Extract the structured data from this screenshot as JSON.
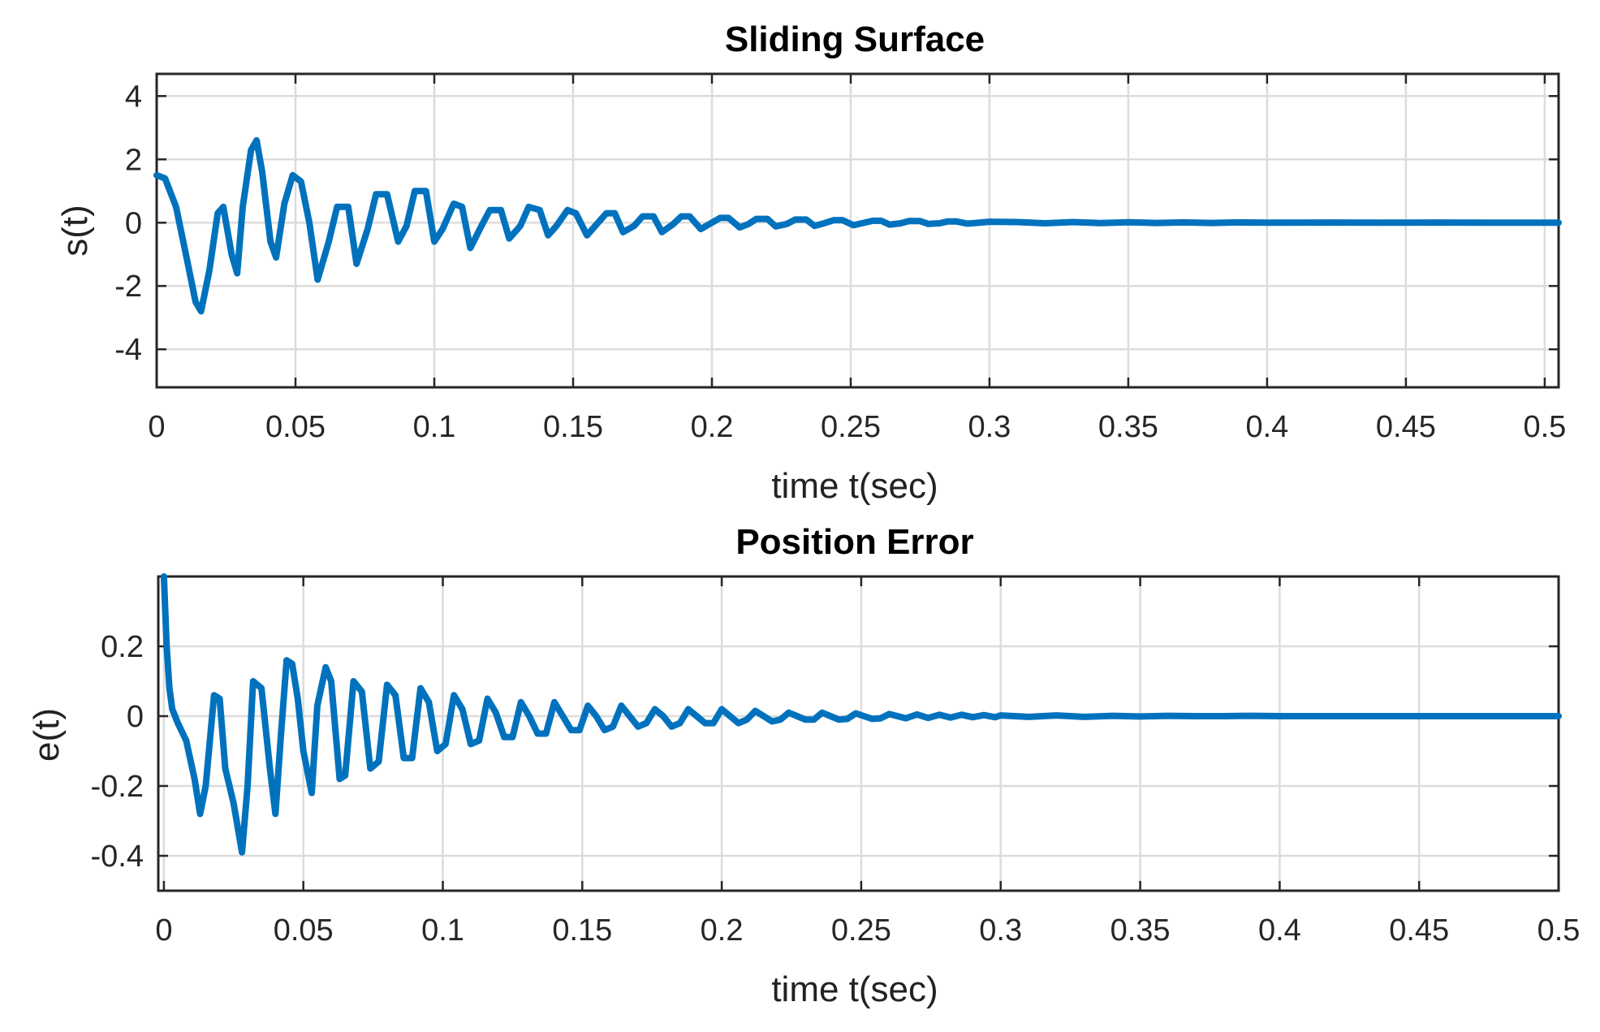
{
  "chart_data": [
    {
      "type": "line",
      "title": "Sliding Surface",
      "xlabel": "time t(sec)",
      "ylabel": "s(t)",
      "xlim": [
        0,
        0.505
      ],
      "ylim": [
        -5.2,
        4.7
      ],
      "xticks": [
        0,
        0.05,
        0.1,
        0.15,
        0.2,
        0.25,
        0.3,
        0.35,
        0.4,
        0.45,
        0.5
      ],
      "xtick_labels": [
        "0",
        "0.05",
        "0.1",
        "0.15",
        "0.2",
        "0.25",
        "0.3",
        "0.35",
        "0.4",
        "0.45",
        "0.5"
      ],
      "yticks": [
        -4,
        -2,
        0,
        2,
        4
      ],
      "ytick_labels": [
        "-4",
        "-2",
        "0",
        "2",
        "4"
      ],
      "grid": true,
      "series": [
        {
          "name": "s(t)",
          "color": "#0072BD",
          "x": [
            0,
            0.003,
            0.007,
            0.011,
            0.014,
            0.016,
            0.019,
            0.022,
            0.024,
            0.027,
            0.029,
            0.031,
            0.034,
            0.036,
            0.038,
            0.041,
            0.043,
            0.046,
            0.049,
            0.052,
            0.055,
            0.058,
            0.062,
            0.065,
            0.069,
            0.072,
            0.076,
            0.079,
            0.083,
            0.087,
            0.09,
            0.093,
            0.097,
            0.1,
            0.103,
            0.107,
            0.11,
            0.113,
            0.117,
            0.12,
            0.124,
            0.127,
            0.131,
            0.134,
            0.138,
            0.141,
            0.144,
            0.148,
            0.151,
            0.155,
            0.158,
            0.162,
            0.165,
            0.168,
            0.172,
            0.175,
            0.179,
            0.182,
            0.186,
            0.189,
            0.192,
            0.196,
            0.199,
            0.203,
            0.206,
            0.21,
            0.213,
            0.216,
            0.22,
            0.223,
            0.227,
            0.23,
            0.234,
            0.237,
            0.24,
            0.244,
            0.247,
            0.251,
            0.254,
            0.258,
            0.261,
            0.264,
            0.268,
            0.271,
            0.275,
            0.278,
            0.282,
            0.285,
            0.288,
            0.292,
            0.295,
            0.3,
            0.31,
            0.32,
            0.33,
            0.34,
            0.35,
            0.36,
            0.37,
            0.38,
            0.39,
            0.4,
            0.42,
            0.44,
            0.46,
            0.48,
            0.505
          ],
          "y": [
            1.5,
            1.4,
            0.5,
            -1.2,
            -2.5,
            -2.8,
            -1.5,
            0.3,
            0.5,
            -1.0,
            -1.6,
            0.5,
            2.3,
            2.6,
            1.6,
            -0.6,
            -1.1,
            0.6,
            1.5,
            1.3,
            0.0,
            -1.8,
            -0.6,
            0.5,
            0.5,
            -1.3,
            -0.2,
            0.9,
            0.9,
            -0.6,
            -0.1,
            1.0,
            1.0,
            -0.6,
            -0.2,
            0.6,
            0.5,
            -0.8,
            -0.1,
            0.4,
            0.4,
            -0.5,
            -0.1,
            0.5,
            0.4,
            -0.4,
            -0.1,
            0.4,
            0.3,
            -0.4,
            -0.1,
            0.3,
            0.3,
            -0.3,
            -0.1,
            0.2,
            0.2,
            -0.3,
            -0.05,
            0.2,
            0.2,
            -0.2,
            -0.05,
            0.15,
            0.15,
            -0.15,
            -0.05,
            0.12,
            0.12,
            -0.12,
            -0.04,
            0.1,
            0.1,
            -0.1,
            -0.03,
            0.08,
            0.08,
            -0.08,
            -0.02,
            0.06,
            0.06,
            -0.06,
            -0.02,
            0.05,
            0.05,
            -0.04,
            -0.02,
            0.04,
            0.04,
            -0.03,
            -0.01,
            0.03,
            0.02,
            -0.02,
            0.02,
            -0.015,
            0.015,
            -0.01,
            0.01,
            -0.01,
            0.01,
            0.0,
            0.005,
            0.0,
            0.004,
            0.0,
            0.0
          ]
        }
      ]
    },
    {
      "type": "line",
      "title": "Position Error",
      "xlabel": "time t(sec)",
      "ylabel": "e(t)",
      "xlim": [
        -0.002,
        0.5
      ],
      "ylim": [
        -0.5,
        0.4
      ],
      "xticks": [
        0,
        0.05,
        0.1,
        0.15,
        0.2,
        0.25,
        0.3,
        0.35,
        0.4,
        0.45,
        0.5
      ],
      "xtick_labels": [
        "0",
        "0.05",
        "0.1",
        "0.15",
        "0.2",
        "0.25",
        "0.3",
        "0.35",
        "0.4",
        "0.45",
        "0.5"
      ],
      "yticks": [
        -0.4,
        -0.2,
        0,
        0.2
      ],
      "ytick_labels": [
        "-0.4",
        "-0.2",
        "0",
        "0.2"
      ],
      "grid": true,
      "series": [
        {
          "name": "e(t)",
          "color": "#0072BD",
          "x": [
            0,
            0.001,
            0.002,
            0.003,
            0.005,
            0.008,
            0.011,
            0.013,
            0.015,
            0.018,
            0.02,
            0.022,
            0.025,
            0.028,
            0.03,
            0.032,
            0.035,
            0.038,
            0.04,
            0.042,
            0.044,
            0.046,
            0.048,
            0.05,
            0.053,
            0.055,
            0.058,
            0.06,
            0.063,
            0.065,
            0.068,
            0.071,
            0.074,
            0.077,
            0.08,
            0.083,
            0.086,
            0.089,
            0.092,
            0.095,
            0.098,
            0.101,
            0.104,
            0.107,
            0.11,
            0.113,
            0.116,
            0.119,
            0.122,
            0.125,
            0.128,
            0.131,
            0.134,
            0.137,
            0.14,
            0.143,
            0.146,
            0.149,
            0.152,
            0.155,
            0.158,
            0.161,
            0.164,
            0.167,
            0.17,
            0.173,
            0.176,
            0.179,
            0.182,
            0.185,
            0.188,
            0.191,
            0.194,
            0.197,
            0.2,
            0.203,
            0.206,
            0.209,
            0.212,
            0.215,
            0.218,
            0.221,
            0.224,
            0.227,
            0.23,
            0.233,
            0.236,
            0.239,
            0.242,
            0.245,
            0.248,
            0.251,
            0.254,
            0.257,
            0.26,
            0.263,
            0.266,
            0.27,
            0.274,
            0.278,
            0.282,
            0.286,
            0.29,
            0.294,
            0.298,
            0.3,
            0.31,
            0.32,
            0.33,
            0.34,
            0.35,
            0.36,
            0.37,
            0.38,
            0.39,
            0.4,
            0.42,
            0.44,
            0.46,
            0.48,
            0.5
          ],
          "y": [
            0.4,
            0.2,
            0.08,
            0.02,
            -0.02,
            -0.07,
            -0.18,
            -0.28,
            -0.2,
            0.06,
            0.05,
            -0.15,
            -0.25,
            -0.39,
            -0.2,
            0.1,
            0.08,
            -0.15,
            -0.28,
            -0.05,
            0.16,
            0.15,
            0.05,
            -0.1,
            -0.22,
            0.03,
            0.14,
            0.1,
            -0.18,
            -0.17,
            0.1,
            0.07,
            -0.15,
            -0.13,
            0.09,
            0.06,
            -0.12,
            -0.12,
            0.08,
            0.04,
            -0.1,
            -0.08,
            0.06,
            0.02,
            -0.08,
            -0.07,
            0.05,
            0.01,
            -0.06,
            -0.06,
            0.04,
            0.0,
            -0.05,
            -0.05,
            0.04,
            0.0,
            -0.04,
            -0.04,
            0.03,
            0.0,
            -0.04,
            -0.03,
            0.03,
            0.0,
            -0.03,
            -0.02,
            0.02,
            0.0,
            -0.03,
            -0.02,
            0.02,
            0.0,
            -0.02,
            -0.02,
            0.02,
            0.0,
            -0.02,
            -0.01,
            0.015,
            0.0,
            -0.015,
            -0.01,
            0.01,
            0.0,
            -0.01,
            -0.01,
            0.01,
            0.0,
            -0.01,
            -0.008,
            0.008,
            0.0,
            -0.008,
            -0.006,
            0.006,
            0.0,
            -0.006,
            0.005,
            -0.005,
            0.004,
            -0.004,
            0.004,
            -0.003,
            0.003,
            -0.003,
            0.002,
            -0.002,
            0.002,
            -0.002,
            0.001,
            -0.001,
            0.001,
            0.0,
            0.0,
            0.001,
            0.0,
            0.0,
            0.0,
            0.0,
            0.0,
            0.0
          ]
        }
      ]
    }
  ]
}
